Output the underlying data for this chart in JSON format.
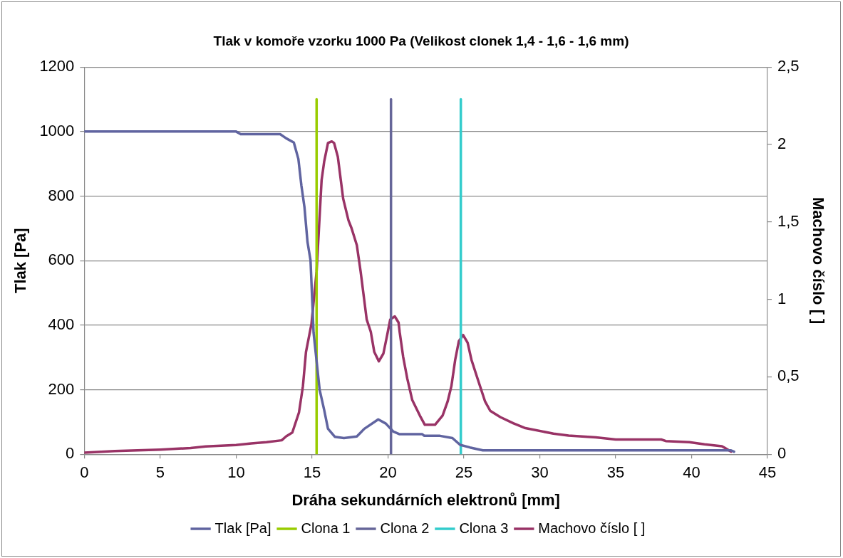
{
  "chart_data": {
    "type": "line",
    "title": "Tlak v komoře vzorku 1000 Pa (Velikost clonek 1,4 - 1,6 - 1,6 mm)",
    "xlabel": "Dráha sekundárních elektronů [mm]",
    "ylabel": "Tlak [Pa]",
    "y2label": "Machovo číslo [ ]",
    "series": [
      {
        "name": "Tlak [Pa]",
        "color": "#6064a0",
        "x": [
          0,
          10.0,
          10.3,
          12.9,
          13.3,
          13.8,
          14.1,
          14.3,
          14.5,
          14.7,
          14.9,
          15.1,
          15.5,
          15.8,
          16.05,
          16.5,
          17.1,
          17.95,
          18.45,
          19.36,
          19.86,
          20.36,
          20.77,
          22.26,
          22.4,
          23.43,
          24.25,
          24.75,
          25.4,
          26.25,
          42.6,
          42.8
        ],
        "values": [
          1000,
          1000,
          992,
          992,
          979,
          966,
          915,
          832,
          766,
          658,
          601,
          377,
          200,
          137,
          79,
          54,
          50,
          55,
          79,
          108,
          95,
          70,
          62,
          62,
          57,
          57,
          50,
          29,
          21,
          12,
          12,
          8
        ]
      },
      {
        "name": "Clona 1",
        "color": "#99cc00",
        "x": [
          15.3,
          15.3
        ],
        "values": [
          0,
          1100
        ]
      },
      {
        "name": "Clona 2",
        "color": "#666699",
        "x": [
          20.2,
          20.2
        ],
        "values": [
          0,
          1100
        ]
      },
      {
        "name": "Clona 3",
        "color": "#33cccc",
        "x": [
          24.8,
          24.8
        ],
        "values": [
          0,
          1100
        ]
      },
      {
        "name": "Machovo číslo [ ]",
        "color": "#993366",
        "axis": "y2",
        "x": [
          0,
          2,
          5,
          7,
          8,
          10,
          11,
          12,
          13,
          13.3,
          13.7,
          14.14,
          14.4,
          14.6,
          14.96,
          15.3,
          15.63,
          15.8,
          16.05,
          16.3,
          16.45,
          16.7,
          17.05,
          17.4,
          17.6,
          17.95,
          18.2,
          18.6,
          18.87,
          19.1,
          19.4,
          19.7,
          19.95,
          20.15,
          20.45,
          20.7,
          20.77,
          21.0,
          21.27,
          21.6,
          22.1,
          22.43,
          23.1,
          23.6,
          23.93,
          24.18,
          24.43,
          24.67,
          24.95,
          25.25,
          25.5,
          25.83,
          26.4,
          26.74,
          27.4,
          28.25,
          29.0,
          30.9,
          31.9,
          33.7,
          35.0,
          38.0,
          38.3,
          39.85,
          40.85,
          42.0,
          42.6
        ],
        "values": [
          0.01,
          0.02,
          0.03,
          0.04,
          0.05,
          0.06,
          0.07,
          0.078,
          0.09,
          0.116,
          0.14,
          0.27,
          0.44,
          0.66,
          0.84,
          1.18,
          1.77,
          1.89,
          2.01,
          2.02,
          2.01,
          1.92,
          1.65,
          1.51,
          1.46,
          1.35,
          1.18,
          0.87,
          0.79,
          0.66,
          0.6,
          0.65,
          0.77,
          0.87,
          0.89,
          0.85,
          0.79,
          0.63,
          0.49,
          0.35,
          0.25,
          0.19,
          0.19,
          0.25,
          0.34,
          0.44,
          0.61,
          0.73,
          0.77,
          0.72,
          0.61,
          0.51,
          0.34,
          0.28,
          0.24,
          0.2,
          0.17,
          0.133,
          0.12,
          0.109,
          0.095,
          0.095,
          0.085,
          0.078,
          0.064,
          0.052,
          0.017
        ]
      }
    ],
    "xlim": [
      0,
      45
    ],
    "xticks": [
      0,
      5,
      10,
      15,
      20,
      25,
      30,
      35,
      40,
      45
    ],
    "ylim": [
      0,
      1200
    ],
    "yticks": [
      0,
      200,
      400,
      600,
      800,
      1000,
      1200
    ],
    "y2lim": [
      0,
      2.5
    ],
    "y2ticks": [
      0,
      {
        "value": 0.5,
        "label": "0,5"
      },
      1,
      {
        "value": 1.5,
        "label": "1,5"
      },
      2,
      {
        "value": 2.5,
        "label": "2,5"
      }
    ],
    "grid": "y",
    "legend": "bottom",
    "marker": "none",
    "line_style": "solid"
  }
}
